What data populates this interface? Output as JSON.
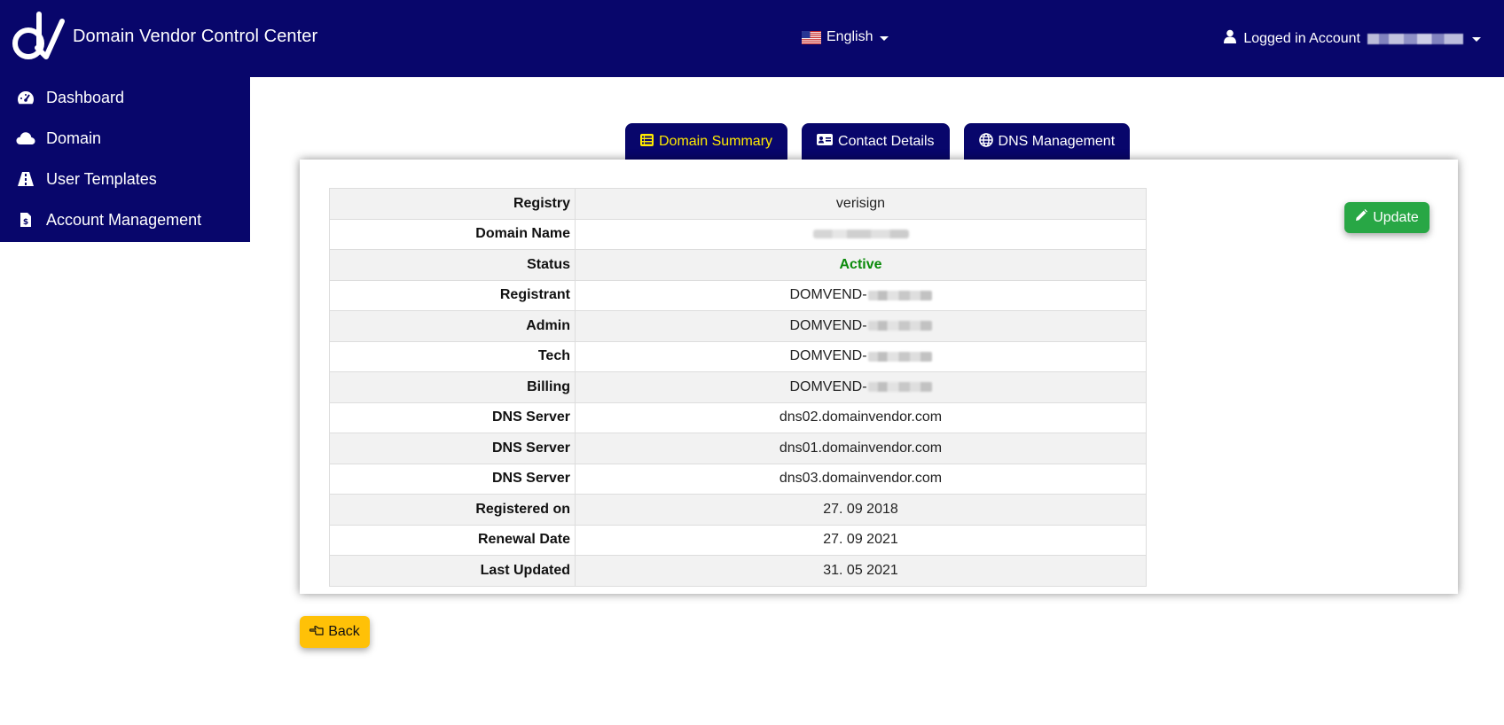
{
  "header": {
    "brand_title": "Domain Vendor Control Center",
    "language_label": "English",
    "account_prefix": "Logged in Account"
  },
  "sidebar": {
    "items": [
      {
        "label": "Dashboard",
        "icon": "dashboard-gauge-icon"
      },
      {
        "label": "Domain",
        "icon": "cloud-icon"
      },
      {
        "label": "User Templates",
        "icon": "road-icon"
      },
      {
        "label": "Account Management",
        "icon": "file-invoice-dollar-icon"
      }
    ]
  },
  "tabs": [
    {
      "label": "Domain Summary",
      "icon": "list-icon",
      "active": true
    },
    {
      "label": "Contact Details",
      "icon": "id-card-icon",
      "active": false
    },
    {
      "label": "DNS Management",
      "icon": "globe-icon",
      "active": false
    }
  ],
  "details": {
    "rows": [
      {
        "key": "Registry",
        "value": "verisign"
      },
      {
        "key": "Domain Name",
        "value": ""
      },
      {
        "key": "Status",
        "value": "Active"
      },
      {
        "key": "Registrant",
        "value": "DOMVEND-"
      },
      {
        "key": "Admin",
        "value": "DOMVEND-"
      },
      {
        "key": "Tech",
        "value": "DOMVEND-"
      },
      {
        "key": "Billing",
        "value": "DOMVEND-"
      },
      {
        "key": "DNS Server",
        "value": "dns02.domainvendor.com"
      },
      {
        "key": "DNS Server",
        "value": "dns01.domainvendor.com"
      },
      {
        "key": "DNS Server",
        "value": "dns03.domainvendor.com"
      },
      {
        "key": "Registered on",
        "value": "27. 09 2018"
      },
      {
        "key": "Renewal Date",
        "value": "27. 09 2021"
      },
      {
        "key": "Last Updated",
        "value": "31. 05 2021"
      }
    ]
  },
  "actions": {
    "update_label": "Update",
    "back_label": "Back"
  },
  "colors": {
    "brand_navy": "#08066b",
    "active_tab_text": "#ffea00",
    "status_active": "#0a8a0a",
    "update_button": "#28a745",
    "back_button": "#ffc107"
  }
}
